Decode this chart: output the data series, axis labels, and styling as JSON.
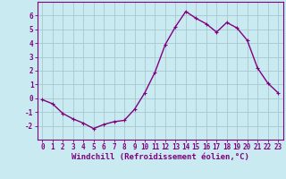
{
  "x": [
    0,
    1,
    2,
    3,
    4,
    5,
    6,
    7,
    8,
    9,
    10,
    11,
    12,
    13,
    14,
    15,
    16,
    17,
    18,
    19,
    20,
    21,
    22,
    23
  ],
  "y": [
    -0.1,
    -0.4,
    -1.1,
    -1.5,
    -1.8,
    -2.2,
    -1.9,
    -1.7,
    -1.6,
    -0.8,
    0.4,
    1.9,
    3.9,
    5.2,
    6.3,
    5.8,
    5.4,
    4.8,
    5.5,
    5.1,
    4.2,
    2.2,
    1.1,
    0.4
  ],
  "line_color": "#800080",
  "marker_color": "#800080",
  "bg_color": "#c8eaf0",
  "grid_color": "#a8c8d0",
  "xlabel": "Windchill (Refroidissement éolien,°C)",
  "xlim": [
    -0.5,
    23.5
  ],
  "ylim": [
    -3,
    7
  ],
  "yticks": [
    -2,
    -1,
    0,
    1,
    2,
    3,
    4,
    5,
    6
  ],
  "xticks": [
    0,
    1,
    2,
    3,
    4,
    5,
    6,
    7,
    8,
    9,
    10,
    11,
    12,
    13,
    14,
    15,
    16,
    17,
    18,
    19,
    20,
    21,
    22,
    23
  ],
  "font_color": "#800080",
  "tick_font_size": 5.5,
  "label_font_size": 6.5,
  "line_width": 1.0,
  "marker_size": 2.5
}
